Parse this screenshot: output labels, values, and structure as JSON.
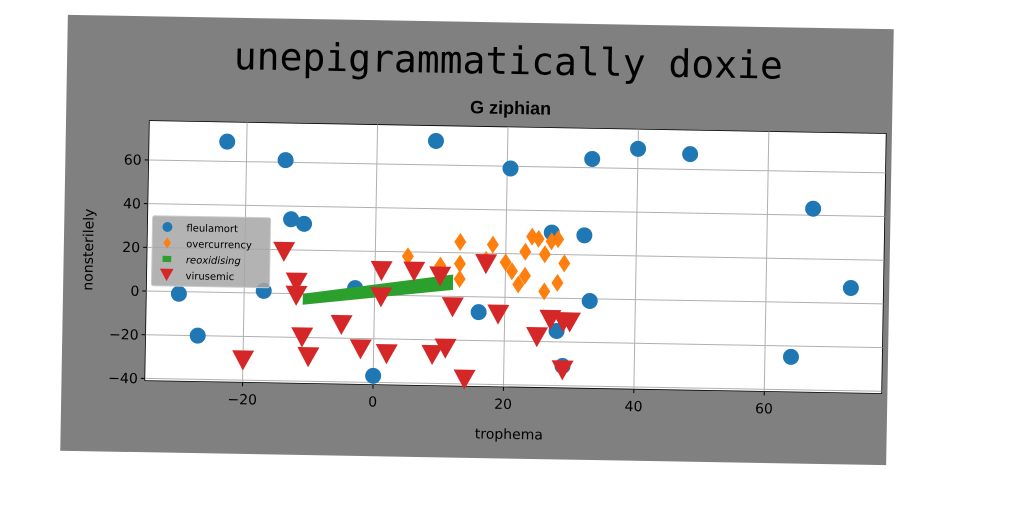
{
  "chart_data": {
    "type": "scatter",
    "suptitle": "unepigrammatically doxie",
    "title": "G ziphian",
    "xlabel": "trophema",
    "ylabel": "nonsterilely",
    "xlim": [
      -35,
      78
    ],
    "ylim": [
      -41,
      78
    ],
    "xticks": [
      -20,
      0,
      20,
      40,
      60
    ],
    "yticks": [
      -40,
      -20,
      0,
      20,
      40,
      60
    ],
    "grid": true,
    "legend_position": "left",
    "colors": {
      "figure_bg": "#808080",
      "axes_bg": "#ffffff",
      "grid": "#b0b0b0"
    },
    "series": [
      {
        "name": "fleulamort",
        "marker": "circle",
        "color": "#1f77b4",
        "points": [
          [
            -23,
            69
          ],
          [
            -14,
            61
          ],
          [
            9,
            71
          ],
          [
            20.5,
            59
          ],
          [
            33,
            64
          ],
          [
            40,
            69
          ],
          [
            48,
            67
          ],
          [
            67,
            43
          ],
          [
            73,
            7
          ],
          [
            -13,
            34
          ],
          [
            -11,
            32
          ],
          [
            27,
            30
          ],
          [
            32,
            29
          ],
          [
            -30,
            -1
          ],
          [
            -27,
            -20
          ],
          [
            -17,
            1
          ],
          [
            -3,
            3
          ],
          [
            16,
            -7
          ],
          [
            28,
            -15
          ],
          [
            33,
            -1
          ],
          [
            29,
            -31
          ],
          [
            0,
            -37
          ],
          [
            64,
            -25
          ]
        ]
      },
      {
        "name": "overcurrency",
        "marker": "diamond",
        "color": "#ff7f0e",
        "points": [
          [
            5,
            18
          ],
          [
            10,
            14
          ],
          [
            13,
            25
          ],
          [
            13,
            15
          ],
          [
            13,
            8
          ],
          [
            17,
            17
          ],
          [
            18,
            24
          ],
          [
            20,
            16
          ],
          [
            21,
            12
          ],
          [
            22,
            6
          ],
          [
            23,
            10
          ],
          [
            23,
            21
          ],
          [
            24,
            28
          ],
          [
            25,
            27
          ],
          [
            26,
            3
          ],
          [
            26,
            20
          ],
          [
            27,
            26
          ],
          [
            28,
            27
          ],
          [
            28,
            7
          ],
          [
            29,
            16
          ]
        ]
      },
      {
        "name": "reoxidising",
        "marker": "band",
        "color": "#2ca02c",
        "x": [
          -11,
          12
        ],
        "y_lower": [
          -5,
          3
        ],
        "y_upper": [
          0,
          10
        ]
      },
      {
        "name": "virusemic",
        "marker": "triangle_down",
        "color": "#d62728",
        "points": [
          [
            -20,
            -31
          ],
          [
            -14,
            19
          ],
          [
            -12,
            5
          ],
          [
            -12,
            -1
          ],
          [
            -11,
            -20
          ],
          [
            -10,
            -29
          ],
          [
            -5,
            -14
          ],
          [
            -2,
            -25
          ],
          [
            1,
            -1
          ],
          [
            1,
            11
          ],
          [
            2,
            -27
          ],
          [
            6,
            11
          ],
          [
            9,
            -27
          ],
          [
            10,
            9
          ],
          [
            11,
            -24
          ],
          [
            12,
            -5
          ],
          [
            14,
            -38
          ],
          [
            17,
            15
          ],
          [
            19,
            -8
          ],
          [
            25,
            -18
          ],
          [
            27,
            -10
          ],
          [
            29,
            -11
          ],
          [
            29,
            -33
          ],
          [
            30,
            -11
          ]
        ]
      }
    ]
  }
}
